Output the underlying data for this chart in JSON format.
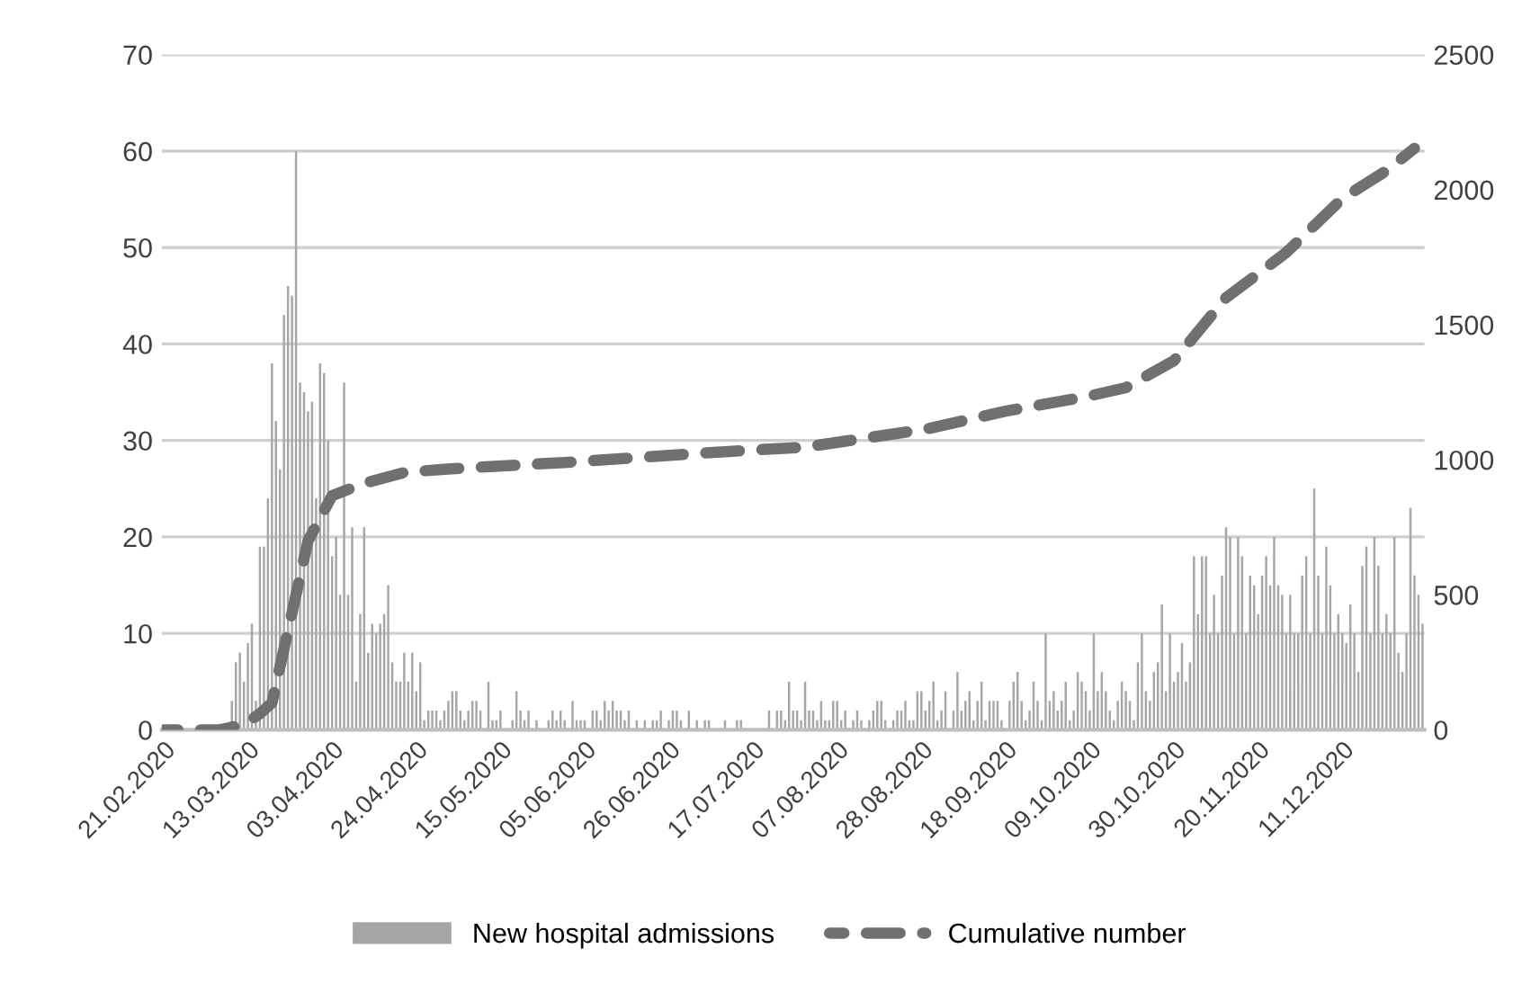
{
  "chart_data": {
    "type": "bar",
    "x": [
      "2020-02-21",
      "2020-02-22",
      "2020-02-23",
      "2020-02-24",
      "2020-02-25",
      "2020-02-26",
      "2020-02-27",
      "2020-02-28",
      "2020-02-29",
      "2020-03-01",
      "2020-03-02",
      "2020-03-03",
      "2020-03-04",
      "2020-03-05",
      "2020-03-06",
      "2020-03-07",
      "2020-03-08",
      "2020-03-09",
      "2020-03-10",
      "2020-03-11",
      "2020-03-12",
      "2020-03-13",
      "2020-03-14",
      "2020-03-15",
      "2020-03-16",
      "2020-03-17",
      "2020-03-18",
      "2020-03-19",
      "2020-03-20",
      "2020-03-21",
      "2020-03-22",
      "2020-03-23",
      "2020-03-24",
      "2020-03-25",
      "2020-03-26",
      "2020-03-27",
      "2020-03-28",
      "2020-03-29",
      "2020-03-30",
      "2020-03-31",
      "2020-04-01",
      "2020-04-02",
      "2020-04-03",
      "2020-04-04",
      "2020-04-05",
      "2020-04-06",
      "2020-04-07",
      "2020-04-08",
      "2020-04-09",
      "2020-04-10",
      "2020-04-11",
      "2020-04-12",
      "2020-04-13",
      "2020-04-14",
      "2020-04-15",
      "2020-04-16",
      "2020-04-17",
      "2020-04-18",
      "2020-04-19",
      "2020-04-20",
      "2020-04-21",
      "2020-04-22",
      "2020-04-23",
      "2020-04-24",
      "2020-04-25",
      "2020-04-26",
      "2020-04-27",
      "2020-04-28",
      "2020-04-29",
      "2020-04-30",
      "2020-05-01",
      "2020-05-02",
      "2020-05-03",
      "2020-05-04",
      "2020-05-05",
      "2020-05-06",
      "2020-05-07",
      "2020-05-08",
      "2020-05-09",
      "2020-05-10",
      "2020-05-11",
      "2020-05-12",
      "2020-05-13",
      "2020-05-14",
      "2020-05-15",
      "2020-05-16",
      "2020-05-17",
      "2020-05-18",
      "2020-05-19",
      "2020-05-20",
      "2020-05-21",
      "2020-05-22",
      "2020-05-23",
      "2020-05-24",
      "2020-05-25",
      "2020-05-26",
      "2020-05-27",
      "2020-05-28",
      "2020-05-29",
      "2020-05-30",
      "2020-05-31",
      "2020-06-01",
      "2020-06-02",
      "2020-06-03",
      "2020-06-04",
      "2020-06-05",
      "2020-06-06",
      "2020-06-07",
      "2020-06-08",
      "2020-06-09",
      "2020-06-10",
      "2020-06-11",
      "2020-06-12",
      "2020-06-13",
      "2020-06-14",
      "2020-06-15",
      "2020-06-16",
      "2020-06-17",
      "2020-06-18",
      "2020-06-19",
      "2020-06-20",
      "2020-06-21",
      "2020-06-22",
      "2020-06-23",
      "2020-06-24",
      "2020-06-25",
      "2020-06-26",
      "2020-06-27",
      "2020-06-28",
      "2020-06-29",
      "2020-06-30",
      "2020-07-01",
      "2020-07-02",
      "2020-07-03",
      "2020-07-04",
      "2020-07-05",
      "2020-07-06",
      "2020-07-07",
      "2020-07-08",
      "2020-07-09",
      "2020-07-10",
      "2020-07-11",
      "2020-07-12",
      "2020-07-13",
      "2020-07-14",
      "2020-07-15",
      "2020-07-16",
      "2020-07-17",
      "2020-07-18",
      "2020-07-19",
      "2020-07-20",
      "2020-07-21",
      "2020-07-22",
      "2020-07-23",
      "2020-07-24",
      "2020-07-25",
      "2020-07-26",
      "2020-07-27",
      "2020-07-28",
      "2020-07-29",
      "2020-07-30",
      "2020-07-31",
      "2020-08-01",
      "2020-08-02",
      "2020-08-03",
      "2020-08-04",
      "2020-08-05",
      "2020-08-06",
      "2020-08-07",
      "2020-08-08",
      "2020-08-09",
      "2020-08-10",
      "2020-08-11",
      "2020-08-12",
      "2020-08-13",
      "2020-08-14",
      "2020-08-15",
      "2020-08-16",
      "2020-08-17",
      "2020-08-18",
      "2020-08-19",
      "2020-08-20",
      "2020-08-21",
      "2020-08-22",
      "2020-08-23",
      "2020-08-24",
      "2020-08-25",
      "2020-08-26",
      "2020-08-27",
      "2020-08-28",
      "2020-08-29",
      "2020-08-30",
      "2020-08-31",
      "2020-09-01",
      "2020-09-02",
      "2020-09-03",
      "2020-09-04",
      "2020-09-05",
      "2020-09-06",
      "2020-09-07",
      "2020-09-08",
      "2020-09-09",
      "2020-09-10",
      "2020-09-11",
      "2020-09-12",
      "2020-09-13",
      "2020-09-14",
      "2020-09-15",
      "2020-09-16",
      "2020-09-17",
      "2020-09-18",
      "2020-09-19",
      "2020-09-20",
      "2020-09-21",
      "2020-09-22",
      "2020-09-23",
      "2020-09-24",
      "2020-09-25",
      "2020-09-26",
      "2020-09-27",
      "2020-09-28",
      "2020-09-29",
      "2020-09-30",
      "2020-10-01",
      "2020-10-02",
      "2020-10-03",
      "2020-10-04",
      "2020-10-05",
      "2020-10-06",
      "2020-10-07",
      "2020-10-08",
      "2020-10-09",
      "2020-10-10",
      "2020-10-11",
      "2020-10-12",
      "2020-10-13",
      "2020-10-14",
      "2020-10-15",
      "2020-10-16",
      "2020-10-17",
      "2020-10-18",
      "2020-10-19",
      "2020-10-20",
      "2020-10-21",
      "2020-10-22",
      "2020-10-23",
      "2020-10-24",
      "2020-10-25",
      "2020-10-26",
      "2020-10-27",
      "2020-10-28",
      "2020-10-29",
      "2020-10-30",
      "2020-10-31",
      "2020-11-01",
      "2020-11-02",
      "2020-11-03",
      "2020-11-04",
      "2020-11-05",
      "2020-11-06",
      "2020-11-07",
      "2020-11-08",
      "2020-11-09",
      "2020-11-10",
      "2020-11-11",
      "2020-11-12",
      "2020-11-13",
      "2020-11-14",
      "2020-11-15",
      "2020-11-16",
      "2020-11-17",
      "2020-11-18",
      "2020-11-19",
      "2020-11-20",
      "2020-11-21",
      "2020-11-22",
      "2020-11-23",
      "2020-11-24",
      "2020-11-25",
      "2020-11-26",
      "2020-11-27",
      "2020-11-28",
      "2020-11-29",
      "2020-11-30",
      "2020-12-01",
      "2020-12-02",
      "2020-12-03",
      "2020-12-04",
      "2020-12-05",
      "2020-12-06",
      "2020-12-07",
      "2020-12-08",
      "2020-12-09",
      "2020-12-10",
      "2020-12-11",
      "2020-12-12",
      "2020-12-13",
      "2020-12-14",
      "2020-12-15",
      "2020-12-16",
      "2020-12-17",
      "2020-12-18",
      "2020-12-19",
      "2020-12-20",
      "2020-12-21",
      "2020-12-22",
      "2020-12-23",
      "2020-12-24",
      "2020-12-25",
      "2020-12-26",
      "2020-12-27",
      "2020-12-28",
      "2020-12-29",
      "2020-12-30",
      "2020-12-31"
    ],
    "series": [
      {
        "name": "New hospital admissions",
        "color": "#a6a6a6",
        "values": [
          0,
          0,
          0,
          0,
          0,
          0,
          0,
          0,
          0,
          0,
          0,
          0,
          0,
          0,
          null,
          0,
          null,
          3,
          7,
          8,
          5,
          9,
          11,
          3,
          19,
          19,
          24,
          38,
          32,
          27,
          43,
          46,
          45,
          60,
          36,
          35,
          33,
          34,
          24,
          38,
          37,
          30,
          18,
          20,
          14,
          36,
          14,
          21,
          5,
          12,
          21,
          8,
          11,
          10,
          11,
          12,
          15,
          7,
          5,
          5,
          8,
          5,
          8,
          4,
          7,
          1,
          2,
          2,
          2,
          1,
          2,
          3,
          4,
          4,
          2,
          1,
          2,
          3,
          3,
          2,
          0,
          5,
          1,
          1,
          2,
          0,
          0,
          1,
          4,
          2,
          1,
          2,
          0,
          1,
          0,
          0,
          1,
          2,
          1,
          2,
          1,
          0,
          3,
          1,
          1,
          1,
          0,
          2,
          2,
          1,
          3,
          2,
          3,
          2,
          2,
          1,
          2,
          0,
          1,
          0,
          1,
          0,
          1,
          1,
          2,
          0,
          1,
          2,
          2,
          1,
          0,
          2,
          0,
          1,
          0,
          1,
          1,
          0,
          0,
          0,
          1,
          0,
          0,
          1,
          1,
          0,
          0,
          0,
          0,
          0,
          0,
          2,
          0,
          2,
          2,
          1,
          5,
          2,
          2,
          1,
          5,
          2,
          2,
          1,
          3,
          1,
          1,
          3,
          3,
          1,
          2,
          0,
          1,
          2,
          1,
          0,
          1,
          2,
          3,
          3,
          1,
          0,
          1,
          2,
          2,
          3,
          1,
          1,
          4,
          4,
          2,
          3,
          5,
          1,
          2,
          4,
          0,
          2,
          6,
          2,
          3,
          4,
          1,
          3,
          5,
          1,
          3,
          3,
          3,
          1,
          0,
          3,
          5,
          6,
          3,
          1,
          2,
          5,
          3,
          1,
          10,
          3,
          4,
          2,
          3,
          5,
          1,
          2,
          6,
          5,
          4,
          2,
          10,
          4,
          6,
          4,
          2,
          1,
          3,
          5,
          4,
          3,
          1,
          7,
          10,
          4,
          3,
          6,
          7,
          13,
          4,
          10,
          5,
          6,
          9,
          5,
          7,
          18,
          12,
          18,
          18,
          10,
          14,
          10,
          16,
          21,
          20,
          10,
          20,
          18,
          10,
          16,
          15,
          12,
          16,
          18,
          15,
          20,
          15,
          14,
          10,
          14,
          10,
          10,
          16,
          18,
          10,
          25,
          16,
          10,
          19,
          15,
          10,
          12,
          10,
          9,
          13,
          10,
          6,
          17,
          19,
          10,
          20,
          17,
          10,
          12,
          10,
          20,
          8,
          6,
          10,
          23,
          16,
          14,
          11
        ]
      },
      {
        "name": "Cumulative number",
        "type": "line",
        "axis": "y2",
        "color": "#707070",
        "line_style": "dashed",
        "x": [
          "2020-02-21",
          "2020-03-06",
          "2020-03-12",
          "2020-03-16",
          "2020-03-19",
          "2020-03-22",
          "2020-03-25",
          "2020-03-28",
          "2020-04-03",
          "2020-04-11",
          "2020-04-21",
          "2020-05-01",
          "2020-05-31",
          "2020-07-10",
          "2020-07-30",
          "2020-08-29",
          "2020-09-18",
          "2020-10-08",
          "2020-10-18",
          "2020-10-30",
          "2020-11-12",
          "2020-11-27",
          "2020-12-11",
          "2020-12-22",
          "2020-12-29"
        ],
        "values": [
          0,
          0,
          20,
          60,
          100,
          300,
          500,
          700,
          867,
          913,
          953,
          965,
          990,
          1030,
          1047,
          1113,
          1180,
          1233,
          1267,
          1367,
          1600,
          1767,
          1967,
          2070,
          2153
        ]
      }
    ],
    "xlim": [
      "2020-02-20T12:00",
      "2020-12-31T12:00"
    ],
    "xticks": [
      {
        "value": "2020-02-21",
        "label": "21.02.2020"
      },
      {
        "value": "2020-03-13",
        "label": "13.03.2020"
      },
      {
        "value": "2020-04-03",
        "label": "03.04.2020"
      },
      {
        "value": "2020-04-24",
        "label": "24.04.2020"
      },
      {
        "value": "2020-05-15",
        "label": "15.05.2020"
      },
      {
        "value": "2020-06-05",
        "label": "05.06.2020"
      },
      {
        "value": "2020-06-26",
        "label": "26.06.2020"
      },
      {
        "value": "2020-07-17",
        "label": "17.07.2020"
      },
      {
        "value": "2020-08-07",
        "label": "07.08.2020"
      },
      {
        "value": "2020-08-28",
        "label": "28.08.2020"
      },
      {
        "value": "2020-09-18",
        "label": "18.09.2020"
      },
      {
        "value": "2020-10-09",
        "label": "09.10.2020"
      },
      {
        "value": "2020-10-30",
        "label": "30.10.2020"
      },
      {
        "value": "2020-11-20",
        "label": "20.11.2020"
      },
      {
        "value": "2020-12-11",
        "label": "11.12.2020"
      }
    ],
    "ylim": [
      0,
      70
    ],
    "yticks": [
      0,
      10,
      20,
      30,
      40,
      50,
      60,
      70
    ],
    "y2lim": [
      0,
      2500
    ],
    "y2ticks": [
      0,
      500,
      1000,
      1500,
      2000,
      2500
    ],
    "grid": "y",
    "legend": "bottom"
  }
}
